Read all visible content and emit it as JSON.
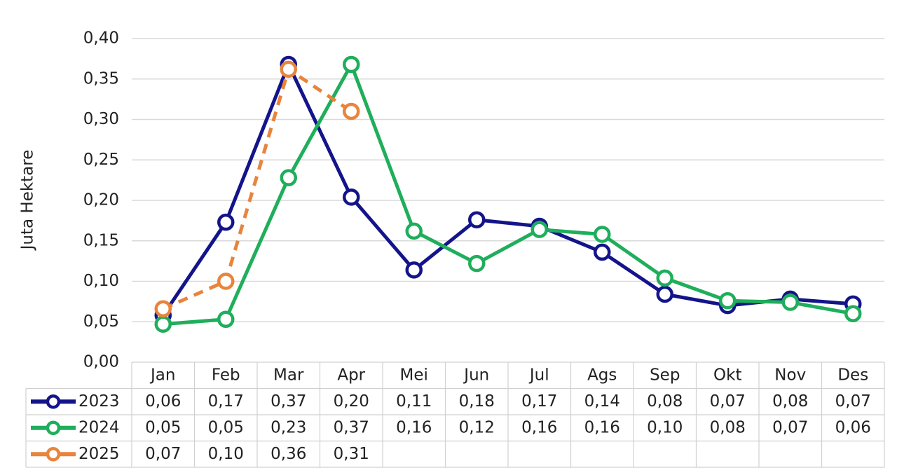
{
  "chart_data": {
    "type": "line",
    "y_label": "Juta Hektare",
    "categories": [
      "Jan",
      "Feb",
      "Mar",
      "Apr",
      "Mei",
      "Jun",
      "Jul",
      "Ags",
      "Sep",
      "Okt",
      "Nov",
      "Des"
    ],
    "ylim": [
      0,
      0.4
    ],
    "yticks": [
      {
        "value": 0,
        "label": "0,00"
      },
      {
        "value": 0.05,
        "label": "0,05"
      },
      {
        "value": 0.1,
        "label": "0,10"
      },
      {
        "value": 0.15,
        "label": "0,15"
      },
      {
        "value": 0.2,
        "label": "0,20"
      },
      {
        "value": 0.25,
        "label": "0,25"
      },
      {
        "value": 0.3,
        "label": "0,30"
      },
      {
        "value": 0.35,
        "label": "0,35"
      },
      {
        "value": 0.4,
        "label": "0,40"
      }
    ],
    "grid": true,
    "series": [
      {
        "name": "2023",
        "color": "#14148a",
        "linestyle": "solid",
        "values": [
          0.058,
          0.173,
          0.368,
          0.204,
          0.114,
          0.176,
          0.168,
          0.136,
          0.084,
          0.07,
          0.078,
          0.072
        ],
        "value_labels": [
          "0,06",
          "0,17",
          "0,37",
          "0,20",
          "0,11",
          "0,18",
          "0,17",
          "0,14",
          "0,08",
          "0,07",
          "0,08",
          "0,07"
        ]
      },
      {
        "name": "2024",
        "color": "#1fae5b",
        "linestyle": "solid",
        "values": [
          0.047,
          0.053,
          0.228,
          0.368,
          0.162,
          0.122,
          0.164,
          0.158,
          0.104,
          0.076,
          0.074,
          0.06
        ],
        "value_labels": [
          "0,05",
          "0,05",
          "0,23",
          "0,37",
          "0,16",
          "0,12",
          "0,16",
          "0,16",
          "0,10",
          "0,08",
          "0,07",
          "0,06"
        ]
      },
      {
        "name": "2025",
        "color": "#e8843c",
        "linestyle": "dashed",
        "values": [
          0.066,
          0.1,
          0.362,
          0.31,
          null,
          null,
          null,
          null,
          null,
          null,
          null,
          null
        ],
        "value_labels": [
          "0,07",
          "0,10",
          "0,36",
          "0,31",
          null,
          null,
          null,
          null,
          null,
          null,
          null,
          null
        ]
      }
    ]
  }
}
